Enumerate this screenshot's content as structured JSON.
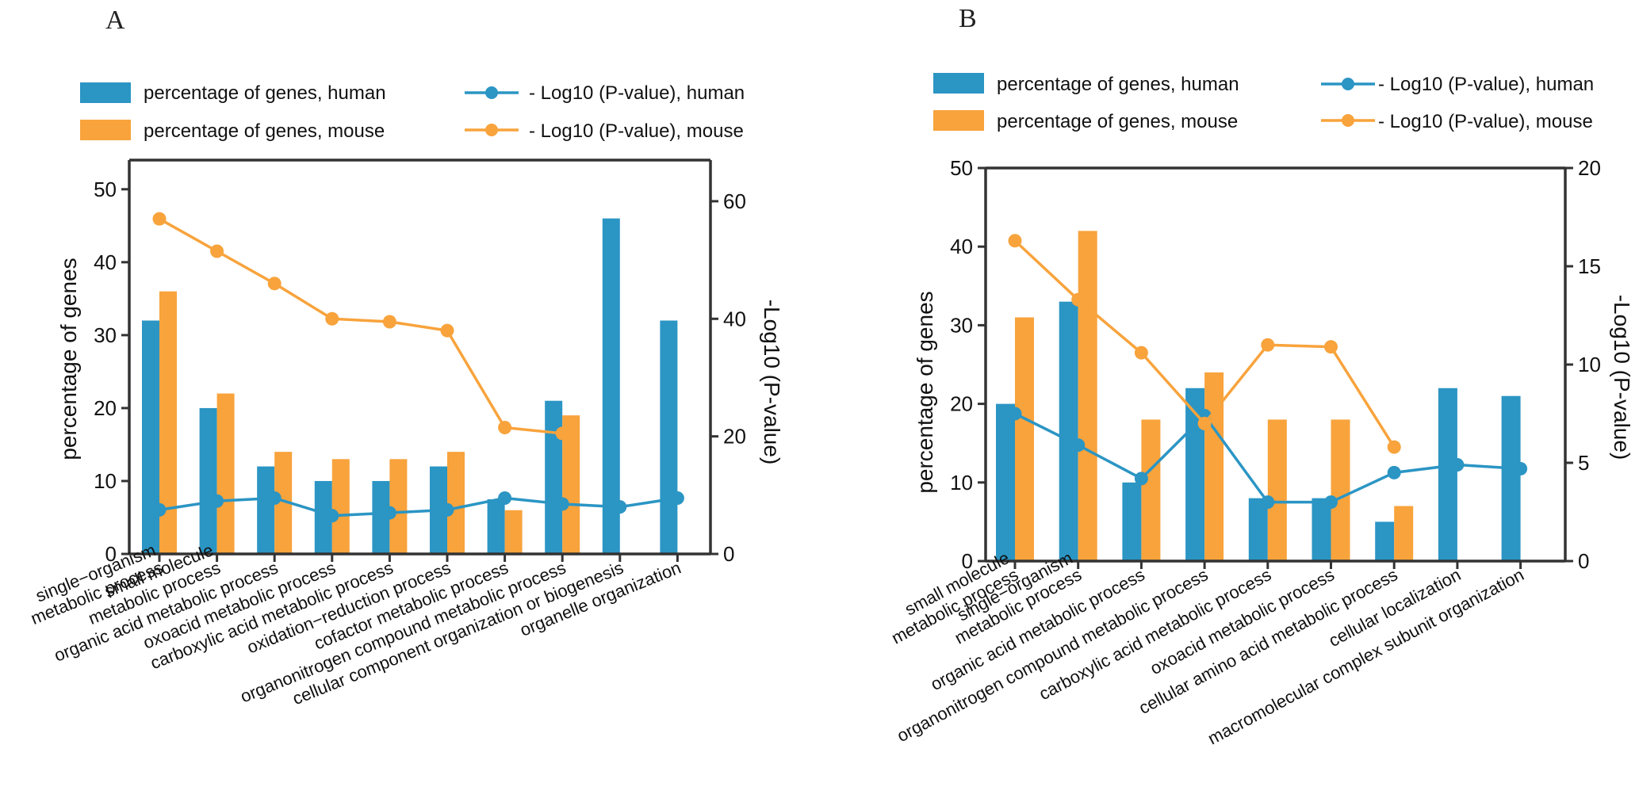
{
  "colors": {
    "human": "#2B95C4",
    "mouse": "#F8A33C",
    "axis": "#333333"
  },
  "chart_data": [
    {
      "panel": "A",
      "type": "bar",
      "legend": {
        "bar_human": "percentage of genes, human",
        "bar_mouse": "percentage of genes, mouse",
        "line_human": "- Log10 (P-value), human",
        "line_mouse": "- Log10 (P-value), mouse"
      },
      "ylabel": "percentage of genes",
      "y2label": "-Log10 (P-value)",
      "ylim": [
        0,
        54
      ],
      "y2lim": [
        0,
        67
      ],
      "yticks": [
        0,
        10,
        20,
        30,
        40,
        50
      ],
      "y2ticks": [
        0,
        20,
        40,
        60
      ],
      "categories": [
        [
          "single−organism",
          "metabolic process"
        ],
        [
          "small molecule",
          "metabolic process"
        ],
        [
          "organic acid metabolic process"
        ],
        [
          "oxoacid metabolic process"
        ],
        [
          "carboxylic acid metabolic process"
        ],
        [
          "oxidation−reduction process"
        ],
        [
          "cofactor metabolic process"
        ],
        [
          "organonitrogen compound metabolic process"
        ],
        [
          "cellular component organization or biogenesis"
        ],
        [
          "organelle organization"
        ]
      ],
      "series": [
        {
          "name": "percentage of genes, human",
          "kind": "bar",
          "axis": "left",
          "values": [
            32,
            20,
            12,
            10,
            10,
            12,
            7.5,
            21,
            46,
            32
          ]
        },
        {
          "name": "percentage of genes, mouse",
          "kind": "bar",
          "axis": "left",
          "values": [
            36,
            22,
            14,
            13,
            13,
            14,
            6,
            19,
            null,
            null
          ]
        },
        {
          "name": "- Log10 (P-value), human",
          "kind": "line",
          "axis": "right",
          "values": [
            7.5,
            9,
            9.5,
            6.5,
            7,
            7.5,
            9.5,
            8.5,
            8,
            9.5
          ]
        },
        {
          "name": "- Log10 (P-value), mouse",
          "kind": "line",
          "axis": "right",
          "values": [
            57,
            51.5,
            46,
            40,
            39.5,
            38,
            21.5,
            20.5,
            null,
            null
          ]
        }
      ]
    },
    {
      "panel": "B",
      "type": "bar",
      "legend": {
        "bar_human": "percentage of genes, human",
        "bar_mouse": "percentage of genes, mouse",
        "line_human": "- Log10 (P-value), human",
        "line_mouse": "- Log10 (P-value), mouse"
      },
      "ylabel": "percentage of genes",
      "y2label": "-Log10 (P-value)",
      "ylim": [
        0,
        50
      ],
      "y2lim": [
        0,
        20
      ],
      "yticks": [
        0,
        10,
        20,
        30,
        40,
        50
      ],
      "y2ticks": [
        0,
        5,
        10,
        15,
        20
      ],
      "categories": [
        [
          "small molecule",
          "metabolic process"
        ],
        [
          "single−organism",
          "metabolic process"
        ],
        [
          "organic acid metabolic process"
        ],
        [
          "organonitrogen compound metabolic process"
        ],
        [
          "carboxylic acid metabolic process"
        ],
        [
          "oxoacid metabolic process"
        ],
        [
          "cellular amino acid metabolic process"
        ],
        [
          "cellular localization"
        ],
        [
          "macromolecular complex subunit organization"
        ]
      ],
      "series": [
        {
          "name": "percentage of genes, human",
          "kind": "bar",
          "axis": "left",
          "values": [
            20,
            33,
            10,
            22,
            8,
            8,
            5,
            22,
            21
          ]
        },
        {
          "name": "percentage of genes, mouse",
          "kind": "bar",
          "axis": "left",
          "values": [
            31,
            42,
            18,
            24,
            18,
            18,
            7,
            null,
            null
          ]
        },
        {
          "name": "- Log10 (P-value), human",
          "kind": "line",
          "axis": "right",
          "values": [
            7.5,
            5.9,
            4.2,
            7.4,
            3,
            3,
            4.5,
            4.9,
            4.7
          ]
        },
        {
          "name": "- Log10 (P-value), mouse",
          "kind": "line",
          "axis": "right",
          "values": [
            16.3,
            13.3,
            10.6,
            7,
            11,
            10.9,
            5.8,
            null,
            null
          ]
        }
      ]
    }
  ]
}
